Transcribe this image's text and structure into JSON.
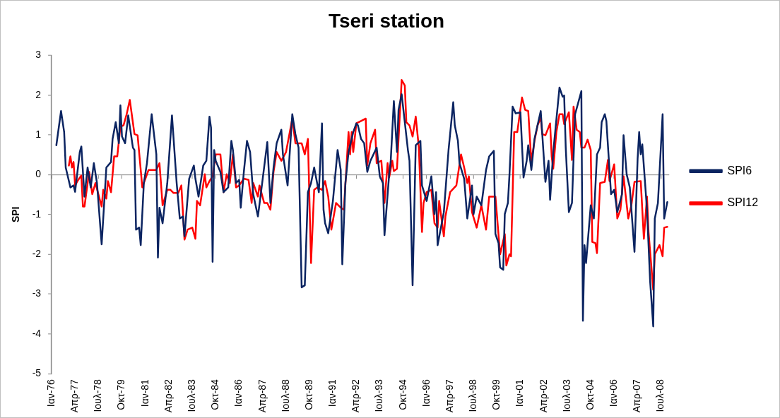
{
  "chart_data": {
    "type": "line",
    "title": "Tseri station",
    "ylabel": "SPI",
    "ylim": [
      -5,
      3
    ],
    "yticks": [
      -5,
      -4,
      -3,
      -2,
      -1,
      0,
      1,
      2,
      3
    ],
    "xlim": [
      "1976-01",
      "2008-12"
    ],
    "xticks": [
      {
        "value": "1976-01",
        "label": "Ιαν-76"
      },
      {
        "value": "1977-04",
        "label": "Απρ-77"
      },
      {
        "value": "1978-07",
        "label": "Ιουλ-78"
      },
      {
        "value": "1979-10",
        "label": "Οκτ-79"
      },
      {
        "value": "1981-01",
        "label": "Ιαν-81"
      },
      {
        "value": "1982-04",
        "label": "Απρ-82"
      },
      {
        "value": "1983-07",
        "label": "Ιουλ-83"
      },
      {
        "value": "1984-10",
        "label": "Οκτ-84"
      },
      {
        "value": "1986-01",
        "label": "Ιαν-86"
      },
      {
        "value": "1987-04",
        "label": "Απρ-87"
      },
      {
        "value": "1988-07",
        "label": "Ιουλ-88"
      },
      {
        "value": "1989-10",
        "label": "Οκτ-89"
      },
      {
        "value": "1991-01",
        "label": "Ιαν-91"
      },
      {
        "value": "1992-04",
        "label": "Απρ-92"
      },
      {
        "value": "1993-07",
        "label": "Ιουλ-93"
      },
      {
        "value": "1994-10",
        "label": "Οκτ-94"
      },
      {
        "value": "1996-01",
        "label": "Ιαν-96"
      },
      {
        "value": "1997-04",
        "label": "Απρ-97"
      },
      {
        "value": "1998-07",
        "label": "Ιουλ-98"
      },
      {
        "value": "1999-10",
        "label": "Οκτ-99"
      },
      {
        "value": "2001-01",
        "label": "Ιαν-01"
      },
      {
        "value": "2002-04",
        "label": "Απρ-02"
      },
      {
        "value": "2003-07",
        "label": "Ιουλ-03"
      },
      {
        "value": "2004-10",
        "label": "Οκτ-04"
      },
      {
        "value": "2006-01",
        "label": "Ιαν-06"
      },
      {
        "value": "2007-04",
        "label": "Απρ-07"
      },
      {
        "value": "2008-07",
        "label": "Ιουλ-08"
      }
    ],
    "legend": "right",
    "marker": "none",
    "line_style": "solid",
    "series": [
      {
        "name": "SPI6",
        "color": "#0b2461",
        "x": [
          "1976-04",
          "1976-07",
          "1976-09",
          "1976-10",
          "1977-01",
          "1977-03",
          "1977-04",
          "1977-07",
          "1977-08",
          "1977-10",
          "1977-12",
          "1978-02",
          "1978-04",
          "1978-06",
          "1978-09",
          "1978-12",
          "1979-03",
          "1979-04",
          "1979-06",
          "1979-08",
          "1979-09",
          "1979-10",
          "1979-12",
          "1980-02",
          "1980-05",
          "1980-06",
          "1980-07",
          "1980-09",
          "1980-10",
          "1980-12",
          "1981-02",
          "1981-05",
          "1981-08",
          "1981-09",
          "1981-10",
          "1981-12",
          "1982-03",
          "1982-06",
          "1982-09",
          "1982-11",
          "1983-01",
          "1983-02",
          "1983-05",
          "1983-08",
          "1983-09",
          "1983-11",
          "1984-02",
          "1984-04",
          "1984-06",
          "1984-07",
          "1984-08",
          "1984-09",
          "1984-10",
          "1985-01",
          "1985-03",
          "1985-06",
          "1985-08",
          "1985-09",
          "1985-11",
          "1986-01",
          "1986-02",
          "1986-04",
          "1986-06",
          "1986-08",
          "1986-10",
          "1987-01",
          "1987-03",
          "1987-07",
          "1987-09",
          "1987-11",
          "1988-01",
          "1988-04",
          "1988-05",
          "1988-08",
          "1988-11",
          "1989-01",
          "1989-03",
          "1989-05",
          "1989-07",
          "1989-09",
          "1989-11",
          "1990-01",
          "1990-04",
          "1990-06",
          "1990-07",
          "1990-08",
          "1990-10",
          "1991-01",
          "1991-04",
          "1991-06",
          "1991-07",
          "1991-09",
          "1991-11",
          "1992-02",
          "1992-04",
          "1992-05",
          "1992-07",
          "1992-09",
          "1992-11",
          "1993-01",
          "1993-05",
          "1993-07",
          "1993-09",
          "1993-10",
          "1994-01",
          "1994-02",
          "1994-04",
          "1994-06",
          "1994-07",
          "1994-09",
          "1995-01",
          "1995-02",
          "1995-04",
          "1995-06",
          "1995-09",
          "1995-10",
          "1996-01",
          "1996-04",
          "1996-06",
          "1996-07",
          "1996-08",
          "1996-12",
          "1997-03",
          "1997-06",
          "1997-07",
          "1997-09",
          "1997-10",
          "1998-01",
          "1998-03",
          "1998-06",
          "1998-07",
          "1998-09",
          "1998-12",
          "1999-03",
          "1999-05",
          "1999-08",
          "1999-09",
          "1999-11",
          "1999-12",
          "2000-02",
          "2000-03",
          "2000-05",
          "2000-06",
          "2000-08",
          "2000-10",
          "2001-01",
          "2001-03",
          "2001-05",
          "2001-06",
          "2001-08",
          "2001-10",
          "2002-02",
          "2002-05",
          "2002-07",
          "2002-08",
          "2002-10",
          "2003-02",
          "2003-04",
          "2003-05",
          "2003-06",
          "2003-08",
          "2003-10",
          "2003-12",
          "2004-04",
          "2004-05",
          "2004-06",
          "2004-07",
          "2004-10",
          "2004-12",
          "2005-02",
          "2005-04",
          "2005-05",
          "2005-07",
          "2005-08",
          "2005-11",
          "2006-01",
          "2006-03",
          "2006-06",
          "2006-07",
          "2006-09",
          "2006-11",
          "2007-02",
          "2007-04",
          "2007-05",
          "2007-06",
          "2007-07",
          "2007-10",
          "2007-12",
          "2008-02",
          "2008-03",
          "2008-05",
          "2008-08",
          "2008-09",
          "2008-11"
        ],
        "values": [
          0.74,
          1.6,
          1.07,
          0.18,
          -0.32,
          -0.27,
          -0.43,
          0.57,
          0.71,
          -0.55,
          0.18,
          -0.32,
          0.29,
          -0.21,
          -1.75,
          0.18,
          0.32,
          0.9,
          1.32,
          0.79,
          1.74,
          0.96,
          0.79,
          1.49,
          0.68,
          0.62,
          -1.38,
          -1.33,
          -1.77,
          -0.21,
          0.29,
          1.52,
          0.51,
          -2.08,
          -0.83,
          -1.22,
          -0.21,
          1.49,
          -0.21,
          -1.1,
          -1.05,
          -1.55,
          -0.1,
          0.23,
          -0.1,
          -0.55,
          0.23,
          0.35,
          1.46,
          1.18,
          -2.19,
          0.62,
          0.35,
          0.07,
          -0.44,
          -0.32,
          0.85,
          0.62,
          -0.21,
          -0.13,
          -0.83,
          0.07,
          0.85,
          0.57,
          -0.49,
          -1.05,
          -0.44,
          0.82,
          -0.71,
          0.18,
          0.79,
          1.13,
          0.51,
          -0.27,
          1.52,
          1.02,
          0.68,
          -2.83,
          -2.78,
          -0.44,
          -0.21,
          0.18,
          -0.44,
          1.29,
          -0.88,
          -1.22,
          -1.47,
          -0.66,
          0.62,
          0.12,
          -2.25,
          -0.21,
          0.57,
          1.07,
          1.29,
          1.24,
          0.9,
          0.79,
          0.07,
          0.35,
          0.68,
          -0.04,
          -0.21,
          -1.52,
          0.01,
          0.35,
          1.85,
          0.57,
          1.63,
          2.02,
          0.62,
          0.35,
          -2.78,
          0.74,
          0.85,
          -0.27,
          -0.66,
          -0.04,
          -0.99,
          -0.44,
          -1.77,
          -0.94,
          0.62,
          1.82,
          1.24,
          0.85,
          0.29,
          -0.1,
          -1.1,
          -0.27,
          -0.99,
          -0.55,
          -0.77,
          0.12,
          0.46,
          0.6,
          -1.49,
          -1.72,
          -2.33,
          -2.39,
          -0.99,
          -0.71,
          0.01,
          1.71,
          1.54,
          1.57,
          -0.07,
          0.35,
          0.74,
          0.12,
          0.9,
          1.6,
          -0.18,
          0.35,
          -0.63,
          0.57,
          2.19,
          1.96,
          1.99,
          0.68,
          -0.94,
          -0.71,
          1.52,
          2.1,
          -3.67,
          -1.77,
          -2.22,
          -0.77,
          -1.1,
          0.51,
          0.68,
          1.32,
          1.52,
          1.35,
          -0.49,
          -0.38,
          -0.94,
          -0.49,
          0.99,
          0.01,
          -0.32,
          -1.94,
          0.4,
          1.07,
          0.51,
          0.76,
          -0.88,
          -2.67,
          -3.81,
          -1.1,
          -0.71,
          1.52,
          -1.1,
          -0.69
        ]
      },
      {
        "name": "SPI12",
        "color": "#ff0000",
        "x": [
          "1976-12",
          "1977-01",
          "1977-02",
          "1977-03",
          "1977-04",
          "1977-06",
          "1977-08",
          "1977-09",
          "1977-10",
          "1978-01",
          "1978-03",
          "1978-05",
          "1978-09",
          "1978-10",
          "1978-12",
          "1979-01",
          "1979-03",
          "1979-05",
          "1979-07",
          "1979-09",
          "1979-11",
          "1980-01",
          "1980-03",
          "1980-06",
          "1980-08",
          "1980-10",
          "1980-11",
          "1981-01",
          "1981-03",
          "1981-08",
          "1981-10",
          "1981-12",
          "1982-03",
          "1982-05",
          "1982-07",
          "1982-10",
          "1982-12",
          "1983-02",
          "1983-04",
          "1983-07",
          "1983-09",
          "1983-10",
          "1983-12",
          "1984-03",
          "1984-04",
          "1984-06",
          "1984-08",
          "1984-10",
          "1985-01",
          "1985-03",
          "1985-05",
          "1985-07",
          "1985-09",
          "1985-11",
          "1986-01",
          "1986-04",
          "1986-07",
          "1986-09",
          "1986-10",
          "1987-01",
          "1987-02",
          "1987-05",
          "1987-07",
          "1987-09",
          "1987-11",
          "1988-01",
          "1988-04",
          "1988-07",
          "1988-09",
          "1988-11",
          "1989-01",
          "1989-05",
          "1989-07",
          "1989-09",
          "1989-11",
          "1990-01",
          "1990-03",
          "1990-06",
          "1990-08",
          "1990-10",
          "1990-12",
          "1991-03",
          "1991-06",
          "1991-08",
          "1991-11",
          "1991-12",
          "1992-01",
          "1992-02",
          "1992-04",
          "1992-07",
          "1992-10",
          "1992-11",
          "1993-01",
          "1993-04",
          "1993-05",
          "1993-08",
          "1993-10",
          "1993-12",
          "1994-01",
          "1994-03",
          "1994-04",
          "1994-06",
          "1994-09",
          "1994-11",
          "1994-12",
          "1995-02",
          "1995-04",
          "1995-06",
          "1995-08",
          "1995-10",
          "1995-11",
          "1996-01",
          "1996-04",
          "1996-06",
          "1996-08",
          "1996-09",
          "1996-12",
          "1997-01",
          "1997-04",
          "1997-08",
          "1997-11",
          "1998-01",
          "1998-03",
          "1998-04",
          "1998-06",
          "1998-09",
          "1998-12",
          "1999-03",
          "1999-05",
          "1999-09",
          "1999-12",
          "2000-03",
          "2000-04",
          "2000-06",
          "2000-07",
          "2000-09",
          "2000-11",
          "2001-02",
          "2001-04",
          "2001-06",
          "2001-08",
          "2001-10",
          "2001-12",
          "2002-02",
          "2002-03",
          "2002-05",
          "2002-08",
          "2002-09",
          "2002-10",
          "2002-12",
          "2003-02",
          "2003-04",
          "2003-05",
          "2003-08",
          "2003-10",
          "2003-11",
          "2004-01",
          "2004-03",
          "2004-04",
          "2004-06",
          "2004-08",
          "2004-10",
          "2004-11",
          "2005-01",
          "2005-02",
          "2005-04",
          "2005-07",
          "2005-09",
          "2005-10",
          "2006-01",
          "2006-03",
          "2006-05",
          "2006-07",
          "2006-10",
          "2006-12",
          "2007-02",
          "2007-06",
          "2007-08",
          "2007-10",
          "2007-11",
          "2008-02",
          "2008-03",
          "2008-06",
          "2008-08",
          "2008-09",
          "2008-11"
        ],
        "values": [
          0.23,
          0.46,
          0.18,
          0.32,
          -0.27,
          -0.13,
          -0.02,
          -0.8,
          -0.8,
          0.07,
          -0.49,
          -0.21,
          -0.8,
          -0.38,
          -0.6,
          -0.16,
          -0.44,
          0.46,
          0.46,
          1.21,
          1.24,
          1.52,
          1.88,
          1.02,
          0.99,
          0.12,
          -0.32,
          -0.1,
          0.12,
          0.12,
          0.29,
          -0.77,
          -0.38,
          -0.38,
          -0.46,
          -0.46,
          -0.27,
          -1.63,
          -1.38,
          -1.33,
          -1.61,
          -0.66,
          -0.77,
          0.01,
          -0.32,
          -0.16,
          -0.04,
          0.51,
          0.51,
          -0.44,
          0.01,
          -0.21,
          0.51,
          -0.32,
          -0.27,
          -0.1,
          -0.13,
          -0.71,
          -0.21,
          -0.55,
          -0.27,
          -0.71,
          -0.71,
          -0.88,
          0.07,
          0.57,
          0.35,
          0.57,
          0.99,
          1.41,
          0.79,
          0.79,
          0.51,
          0.9,
          -2.22,
          -0.38,
          -0.32,
          -0.38,
          -0.16,
          -0.55,
          -1.38,
          -0.71,
          -0.83,
          -0.88,
          1.07,
          0.51,
          1.07,
          0.57,
          1.29,
          1.35,
          1.41,
          0.23,
          0.79,
          1.13,
          0.29,
          0.35,
          -0.71,
          0.29,
          -0.07,
          0.35,
          0.09,
          0.15,
          2.38,
          2.24,
          1.32,
          1.24,
          0.96,
          1.46,
          0.68,
          -1.44,
          -0.71,
          -0.44,
          -0.38,
          -1.22,
          -1.33,
          -0.66,
          -1.55,
          -1.05,
          -0.44,
          -0.27,
          0.51,
          0.18,
          -0.21,
          -0.04,
          -0.94,
          -1.33,
          -0.77,
          -1.38,
          -0.55,
          -0.55,
          -2.0,
          -1.49,
          -2.28,
          -2.0,
          -2.05,
          1.07,
          1.07,
          1.94,
          1.63,
          1.6,
          0.32,
          0.85,
          1.24,
          1.43,
          1.02,
          0.99,
          1.29,
          0.46,
          0.15,
          1.07,
          1.52,
          1.52,
          1.27,
          1.57,
          0.37,
          1.71,
          1.13,
          1.07,
          0.68,
          0.68,
          0.88,
          0.62,
          -1.69,
          -1.72,
          -1.97,
          -0.21,
          -0.18,
          0.37,
          -0.16,
          0.26,
          -1.1,
          -0.88,
          -0.04,
          -1.1,
          -0.77,
          -0.18,
          -0.16,
          -1.61,
          -0.55,
          -1.44,
          -2.89,
          -2.0,
          -1.77,
          -2.05,
          -1.33,
          -1.31
        ]
      }
    ]
  }
}
